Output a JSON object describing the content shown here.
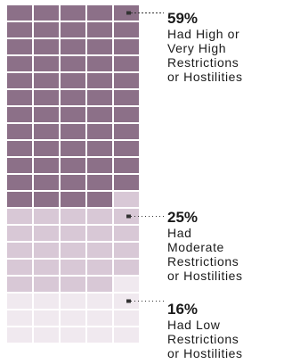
{
  "chart_data": {
    "type": "waffle",
    "grid": {
      "columns": 5,
      "rows": 20,
      "cells": 100
    },
    "series": [
      {
        "value": 59,
        "label_pct": "59%",
        "label_lines": [
          "Had High or",
          "Very High",
          "Restrictions",
          "or Hostilities"
        ],
        "color": "#8c7088"
      },
      {
        "value": 25,
        "label_pct": "25%",
        "label_lines": [
          "Had",
          "Moderate",
          "Restrictions",
          "or Hostilities"
        ],
        "color": "#d8c8d6"
      },
      {
        "value": 16,
        "label_pct": "16%",
        "label_lines": [
          "Had Low",
          "Restrictions",
          "or Hostilities"
        ],
        "color": "#f0e9ef"
      }
    ],
    "legend": "right"
  },
  "colors": {
    "connector": "#333333"
  }
}
